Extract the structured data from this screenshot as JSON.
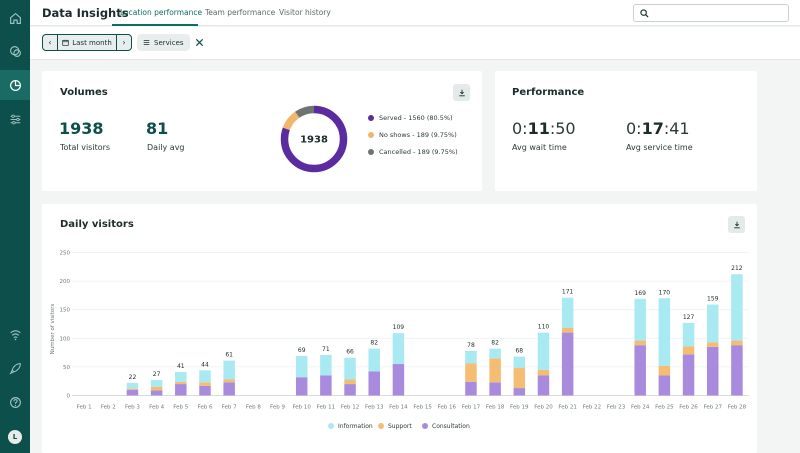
{
  "app": {
    "title": "Data Insights"
  },
  "tabs": [
    {
      "label": "Location performance",
      "active": true
    },
    {
      "label": "Team performance",
      "active": false
    },
    {
      "label": "Visitor history",
      "active": false
    }
  ],
  "search": {
    "placeholder": ""
  },
  "filters": {
    "date_range": "Last month",
    "services_chip": "Services"
  },
  "volumes": {
    "title": "Volumes",
    "total_visitors": "1938",
    "total_visitors_label": "Total visitors",
    "daily_avg": "81",
    "daily_avg_label": "Daily avg",
    "donut_center": "1938",
    "legend": [
      {
        "label": "Served - 1560 (80.5%)",
        "color": "#5b2ca0",
        "value": 1560
      },
      {
        "label": "No shows - 189 (9.75%)",
        "color": "#f0b66b",
        "value": 189
      },
      {
        "label": "Cancelled - 189 (9.75%)",
        "color": "#6e7472",
        "value": 189
      }
    ]
  },
  "performance": {
    "title": "Performance",
    "wait": {
      "prefix": "0:",
      "mid": "11",
      "suffix": ":50",
      "label": "Avg wait time"
    },
    "service": {
      "prefix": "0:",
      "mid": "17",
      "suffix": ":41",
      "label": "Avg service time"
    }
  },
  "chart_data": {
    "type": "bar",
    "stacked": true,
    "title": "Daily visitors",
    "ylabel": "Number of visitors",
    "xlabel": "",
    "ylim": [
      0,
      250
    ],
    "yticks": [
      0,
      50,
      100,
      150,
      200,
      250
    ],
    "categories": [
      "Feb 1",
      "Feb 2",
      "Feb 3",
      "Feb 4",
      "Feb 5",
      "Feb 6",
      "Feb 7",
      "Feb 8",
      "Feb 9",
      "Feb 10",
      "Feb 11",
      "Feb 12",
      "Feb 13",
      "Feb 14",
      "Feb 15",
      "Feb 16",
      "Feb 17",
      "Feb 18",
      "Feb 19",
      "Feb 20",
      "Feb 21",
      "Feb 22",
      "Feb 23",
      "Feb 24",
      "Feb 25",
      "Feb 26",
      "Feb 27",
      "Feb 28"
    ],
    "totals": [
      0,
      0,
      22,
      27,
      41,
      44,
      61,
      0,
      0,
      69,
      71,
      66,
      82,
      109,
      0,
      0,
      78,
      82,
      68,
      110,
      171,
      0,
      0,
      169,
      170,
      127,
      159,
      212
    ],
    "series": [
      {
        "name": "Consultation",
        "color": "#a98bde",
        "values": [
          0,
          0,
          10,
          9,
          20,
          17,
          23,
          0,
          0,
          32,
          35,
          20,
          42,
          55,
          0,
          0,
          24,
          23,
          13,
          35,
          110,
          0,
          0,
          88,
          35,
          72,
          85,
          88
        ]
      },
      {
        "name": "Support",
        "color": "#f5bd73",
        "values": [
          0,
          0,
          2,
          6,
          4,
          6,
          5,
          0,
          0,
          0,
          0,
          8,
          0,
          0,
          0,
          0,
          32,
          42,
          35,
          10,
          8,
          0,
          0,
          8,
          17,
          14,
          8,
          8
        ]
      },
      {
        "name": "Information",
        "color": "#a9e9f1",
        "values": [
          0,
          0,
          10,
          12,
          17,
          21,
          33,
          0,
          0,
          37,
          36,
          38,
          40,
          54,
          0,
          0,
          22,
          17,
          20,
          65,
          53,
          0,
          0,
          73,
          118,
          41,
          66,
          116
        ]
      }
    ],
    "legend": [
      "Information",
      "Support",
      "Consultation"
    ]
  }
}
